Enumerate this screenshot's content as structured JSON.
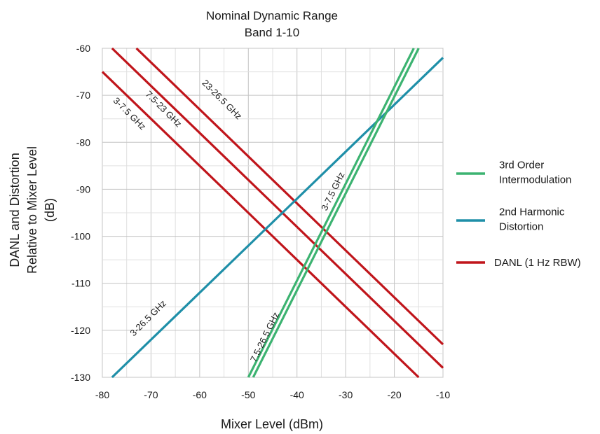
{
  "chart_data": {
    "type": "line",
    "title": [
      "Nominal Dynamic Range",
      "Band 1-10"
    ],
    "xlabel": "Mixer Level (dBm)",
    "ylabel": [
      "DANL and Distortion",
      "Relative to Mixer Level",
      "(dB)"
    ],
    "xlim": [
      -80,
      -10
    ],
    "ylim": [
      -130,
      -60
    ],
    "x_ticks": [
      -80,
      -70,
      -60,
      -50,
      -40,
      -30,
      -20,
      -10
    ],
    "y_ticks": [
      -60,
      -70,
      -80,
      -90,
      -100,
      -110,
      -120,
      -130
    ],
    "x_tick_labels": [
      "-80",
      "-70",
      "-60",
      "-50",
      "-40",
      "-30",
      "-20",
      "-10"
    ],
    "y_tick_labels": [
      "-60",
      "-70",
      "-80",
      "-90",
      "-100",
      "-110",
      "-120",
      "-130"
    ],
    "grid": true,
    "legend_position": "right",
    "legend": [
      {
        "label": [
          "3rd Order",
          "Intermodulation"
        ],
        "color": "#3cb371"
      },
      {
        "label": [
          "2nd Harmonic",
          "Distortion"
        ],
        "color": "#1f8fa8"
      },
      {
        "label": [
          "DANL (1 Hz RBW)"
        ],
        "color": "#c0151b"
      }
    ],
    "series": [
      {
        "group": "DANL (1 Hz RBW)",
        "color": "#c0151b",
        "x": [
          -80,
          -15
        ],
        "y": [
          -65,
          -130
        ]
      },
      {
        "group": "DANL (1 Hz RBW)",
        "color": "#c0151b",
        "x": [
          -78,
          -10
        ],
        "y": [
          -60,
          -128
        ]
      },
      {
        "group": "DANL (1 Hz RBW)",
        "color": "#c0151b",
        "x": [
          -73,
          -10
        ],
        "y": [
          -60,
          -123
        ]
      },
      {
        "group": "2nd Harmonic Distortion",
        "color": "#1f8fa8",
        "x": [
          -78,
          -10
        ],
        "y": [
          -130,
          -62
        ]
      },
      {
        "group": "3rd Order Intermodulation",
        "color": "#3cb371",
        "x": [
          -50,
          -16
        ],
        "y": [
          -130,
          -60
        ]
      },
      {
        "group": "3rd Order Intermodulation",
        "color": "#3cb371",
        "x": [
          -49,
          -15
        ],
        "y": [
          -130,
          -60
        ]
      }
    ],
    "annotations": [
      {
        "text": "3-7.5 GHz",
        "x": -74.5,
        "y": -74,
        "angle": 45
      },
      {
        "text": "7.5-23 GHz",
        "x": -67.5,
        "y": -73,
        "angle": 45
      },
      {
        "text": "23-26.5 GHz",
        "x": -55.5,
        "y": -71,
        "angle": 45
      },
      {
        "text": "3-26.5 GHz",
        "x": -70.5,
        "y": -117.5,
        "angle": -45
      },
      {
        "text": "3-7.5 GHz",
        "x": -32.5,
        "y": -90.5,
        "angle": -64
      },
      {
        "text": "7.5-26.5 GHz",
        "x": -46.5,
        "y": -121.5,
        "angle": -64
      }
    ]
  }
}
